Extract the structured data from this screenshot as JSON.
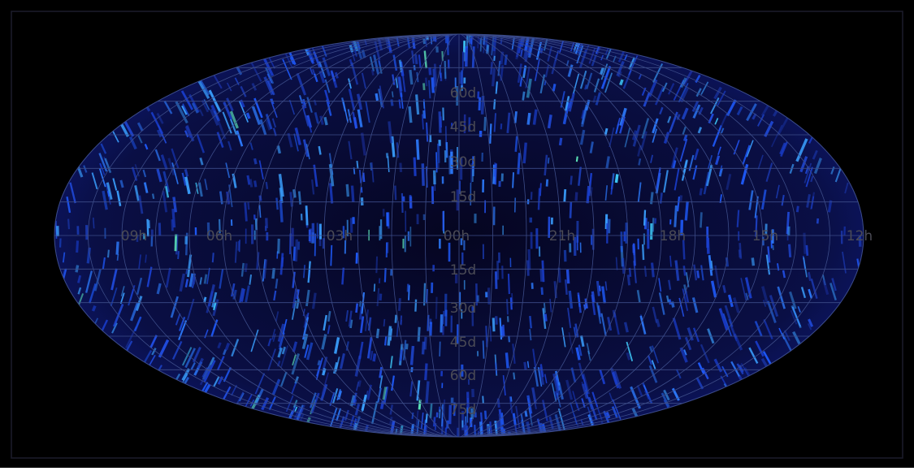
{
  "map": {
    "ra_labels": [
      "09h",
      "06h",
      "03h",
      "00h",
      "21h",
      "18h",
      "15h",
      "12h"
    ],
    "dec_labels": [
      "60d",
      "45d",
      "30d",
      "15d",
      "15d",
      "30d",
      "45d",
      "60d",
      "75d"
    ]
  }
}
